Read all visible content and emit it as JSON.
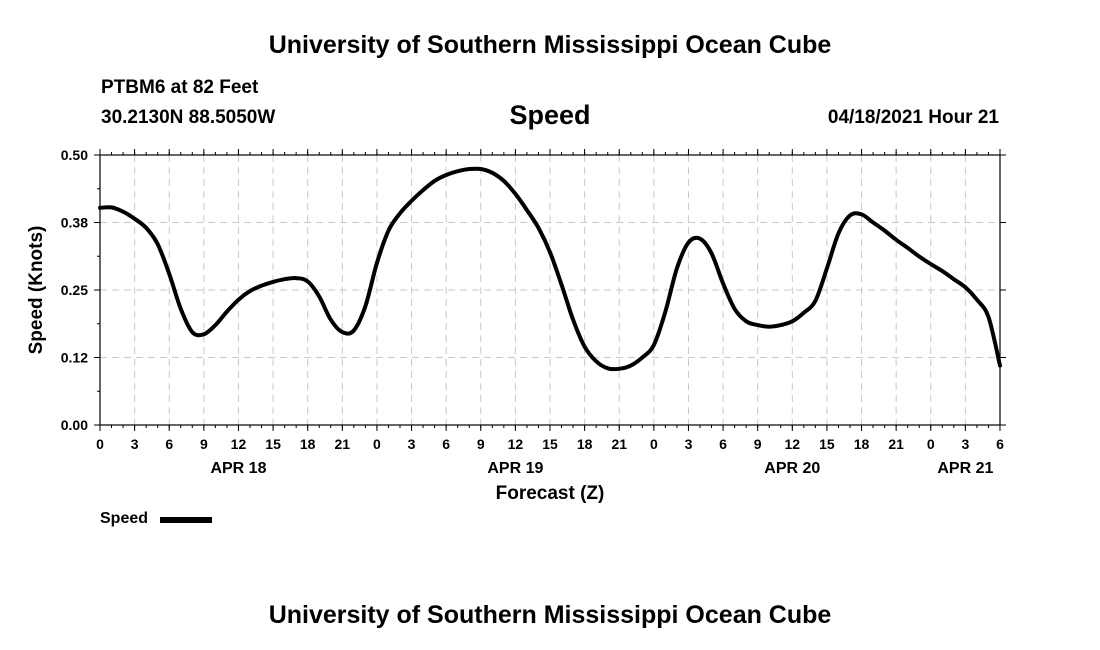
{
  "header": {
    "title_top": "University of Southern Mississippi Ocean Cube",
    "station": "PTBM6 at 82 Feet",
    "coords": "30.2130N  88.5050W",
    "variable": "Speed",
    "timestamp": "04/18/2021 Hour 21"
  },
  "footer": {
    "title_bottom": "University of Southern Mississippi Ocean Cube"
  },
  "legend": {
    "label": "Speed"
  },
  "chart_data": {
    "type": "line",
    "title": "Speed",
    "xlabel": "Forecast (Z)",
    "ylabel": "Speed (Knots)",
    "ylim": [
      0,
      0.5
    ],
    "xlim": [
      0,
      78
    ],
    "grid": true,
    "legend_position": "bottom-left",
    "y_ticks": [
      {
        "value": 0.0,
        "label": "0.00"
      },
      {
        "value": 0.125,
        "label": "0.12"
      },
      {
        "value": 0.25,
        "label": "0.25"
      },
      {
        "value": 0.375,
        "label": "0.38"
      },
      {
        "value": 0.5,
        "label": "0.50"
      }
    ],
    "x_tick_labels": [
      "0",
      "3",
      "6",
      "9",
      "12",
      "15",
      "18",
      "21",
      "0",
      "3",
      "6",
      "9",
      "12",
      "15",
      "18",
      "21",
      "0",
      "3",
      "6",
      "9",
      "12",
      "15",
      "18",
      "21",
      "0",
      "3",
      "6"
    ],
    "date_labels": [
      {
        "hour": 12,
        "label": "APR 18"
      },
      {
        "hour": 36,
        "label": "APR 19"
      },
      {
        "hour": 60,
        "label": "APR 20"
      },
      {
        "hour": 75,
        "label": "APR 21"
      }
    ],
    "series": [
      {
        "name": "Speed",
        "color": "#000000",
        "x": [
          0,
          1,
          2,
          3,
          4,
          5,
          6,
          7,
          8,
          9,
          10,
          11,
          12,
          13,
          14,
          15,
          16,
          17,
          18,
          19,
          20,
          21,
          22,
          23,
          24,
          25,
          26,
          27,
          28,
          29,
          30,
          31,
          32,
          33,
          34,
          35,
          36,
          37,
          38,
          39,
          40,
          41,
          42,
          43,
          44,
          45,
          46,
          47,
          48,
          49,
          50,
          51,
          52,
          53,
          54,
          55,
          56,
          57,
          58,
          59,
          60,
          61,
          62,
          63,
          64,
          65,
          66,
          67,
          68,
          69,
          70,
          71,
          72,
          73,
          74,
          75,
          76,
          77,
          78
        ],
        "values": [
          0.402,
          0.403,
          0.395,
          0.382,
          0.365,
          0.335,
          0.28,
          0.215,
          0.172,
          0.168,
          0.185,
          0.21,
          0.232,
          0.248,
          0.258,
          0.265,
          0.27,
          0.272,
          0.266,
          0.238,
          0.195,
          0.172,
          0.175,
          0.22,
          0.3,
          0.36,
          0.392,
          0.415,
          0.435,
          0.452,
          0.463,
          0.47,
          0.474,
          0.474,
          0.467,
          0.452,
          0.428,
          0.398,
          0.365,
          0.32,
          0.26,
          0.195,
          0.145,
          0.118,
          0.105,
          0.104,
          0.11,
          0.125,
          0.148,
          0.21,
          0.29,
          0.338,
          0.345,
          0.318,
          0.262,
          0.215,
          0.192,
          0.185,
          0.182,
          0.185,
          0.192,
          0.208,
          0.23,
          0.29,
          0.355,
          0.388,
          0.39,
          0.375,
          0.36,
          0.343,
          0.328,
          0.312,
          0.298,
          0.285,
          0.27,
          0.255,
          0.232,
          0.2,
          0.11
        ]
      }
    ]
  }
}
